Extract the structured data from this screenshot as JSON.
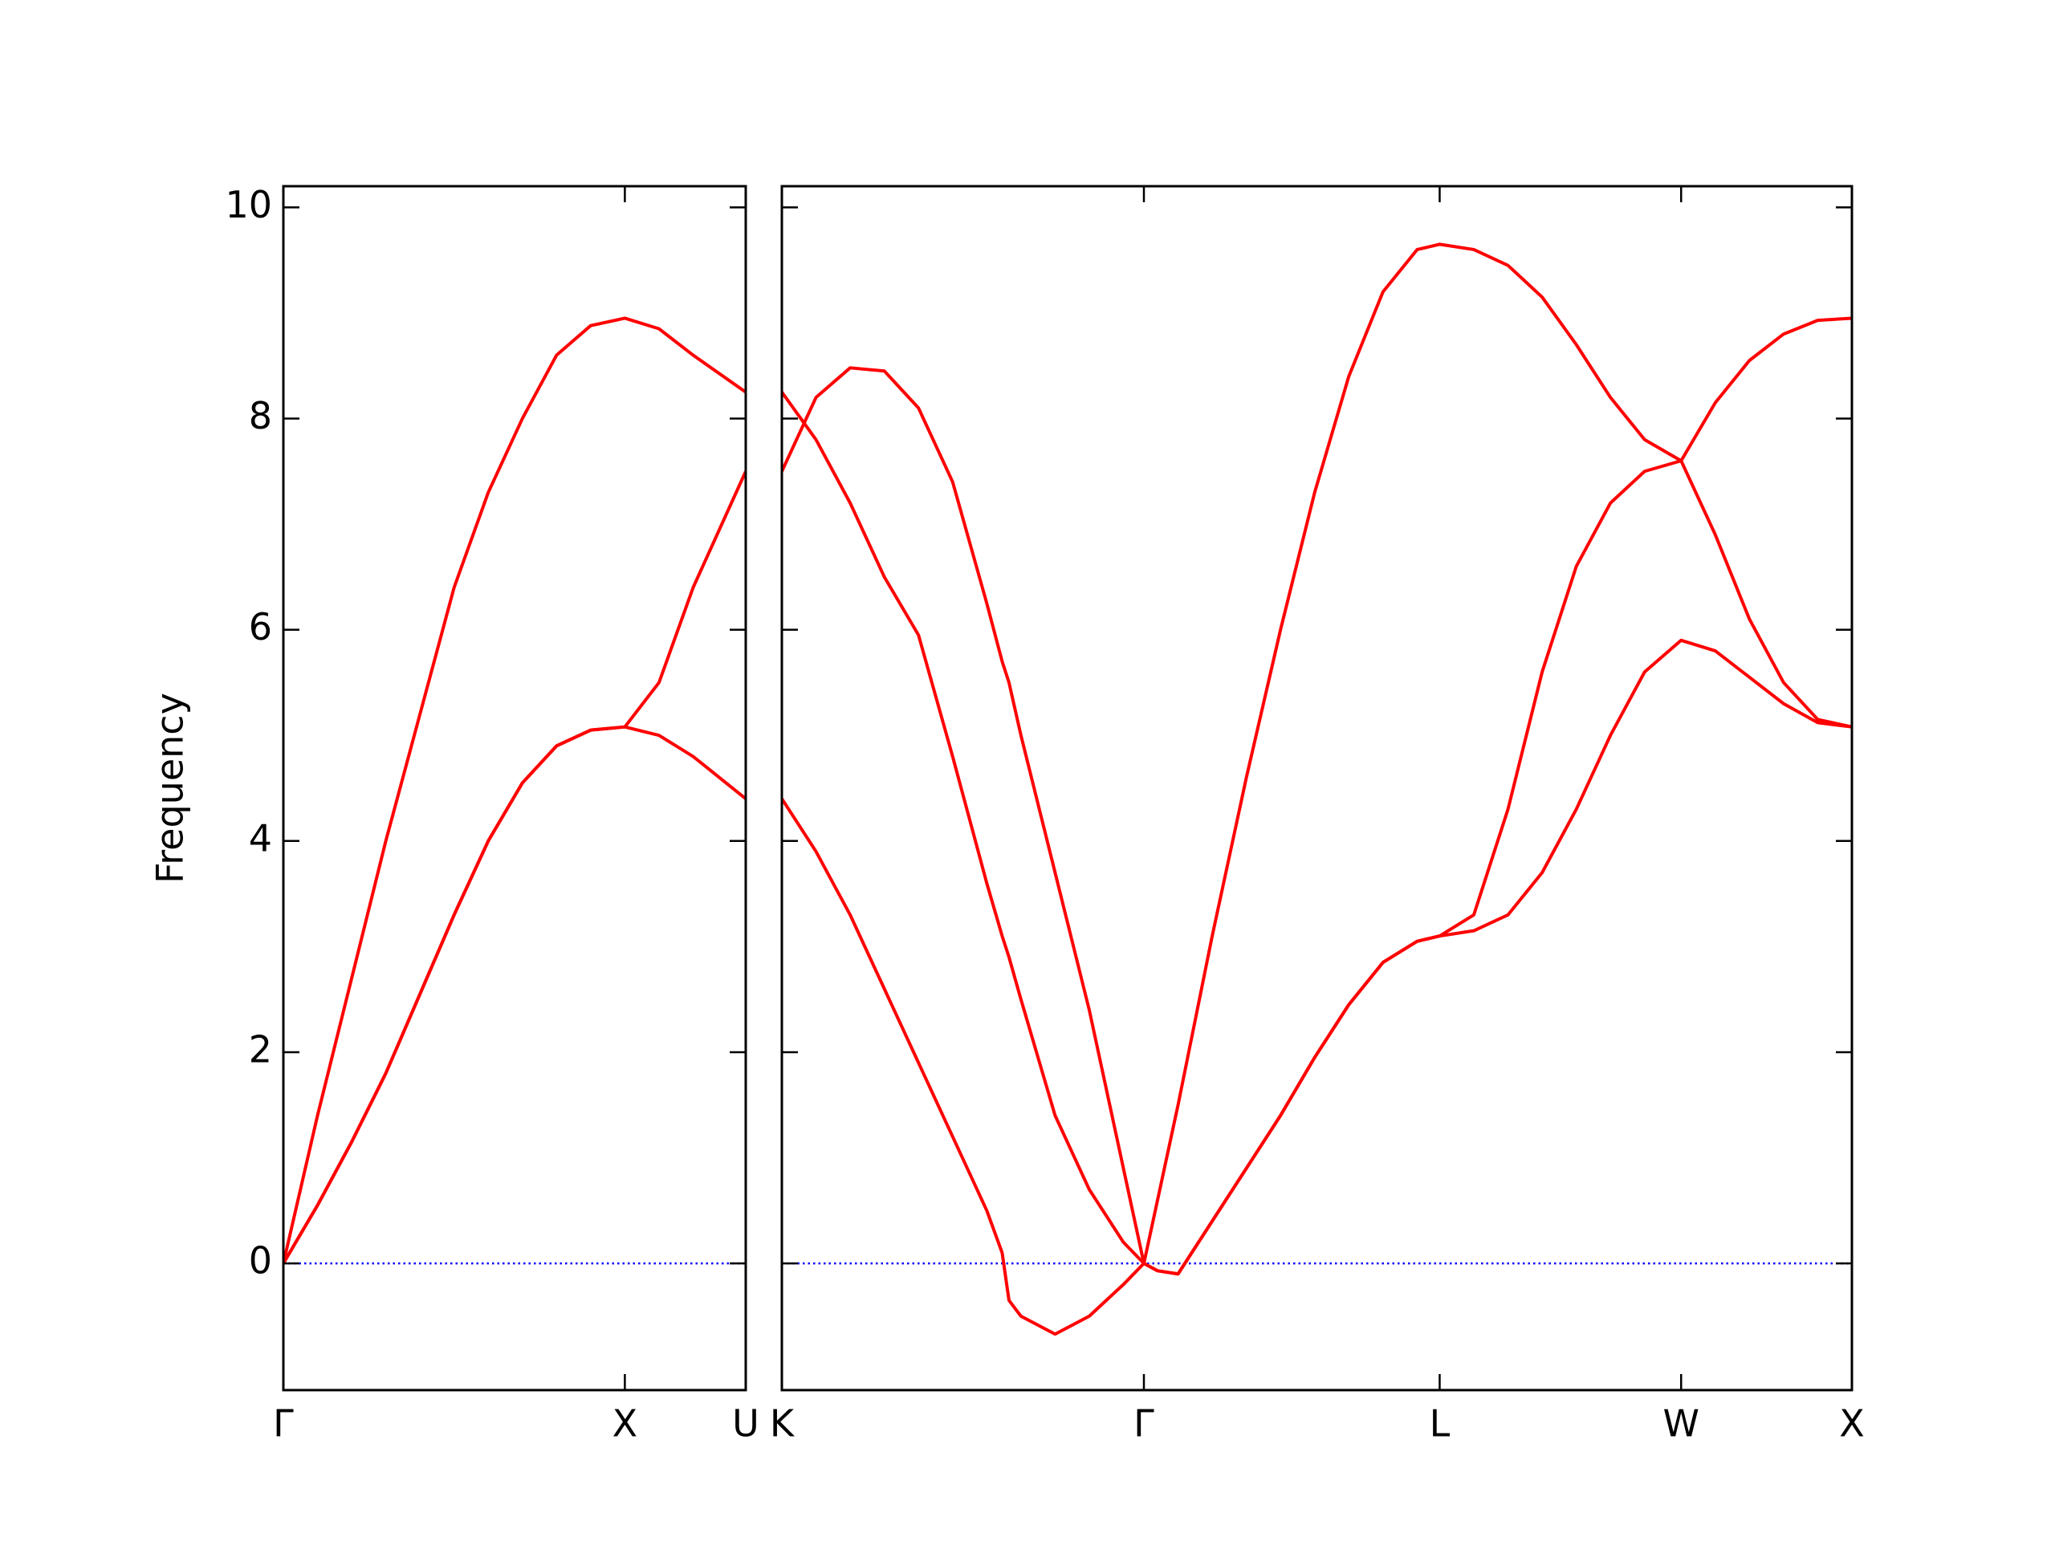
{
  "chart_data": [
    {
      "type": "line",
      "ylabel": "Frequency",
      "x": [
        0,
        0.1,
        0.2,
        0.3,
        0.4,
        0.5,
        0.6,
        0.7,
        0.8,
        0.9,
        1.0,
        1.1,
        1.2,
        1.354
      ],
      "series": [
        {
          "color": "#ff0000",
          "values": [
            0,
            1.4,
            2.7,
            4.0,
            5.2,
            6.4,
            7.3,
            8.0,
            8.6,
            8.88,
            8.95,
            8.85,
            8.6,
            8.25
          ]
        },
        {
          "color": "#ff0000",
          "values": [
            0,
            0.55,
            1.15,
            1.8,
            2.55,
            3.3,
            4.0,
            4.55,
            4.9,
            5.05,
            5.08,
            5.5,
            6.4,
            7.5
          ]
        },
        {
          "color": "#ff0000",
          "values": [
            0,
            0.55,
            1.15,
            1.8,
            2.55,
            3.3,
            4.0,
            4.55,
            4.9,
            5.05,
            5.08,
            5.0,
            4.8,
            4.4
          ]
        }
      ],
      "xlim": [
        0,
        1.354
      ],
      "xticks": [
        {
          "value": 0,
          "label": "Γ"
        },
        {
          "value": 1.0,
          "label": "X"
        },
        {
          "value": 1.354,
          "label": "U"
        }
      ],
      "ylim": [
        -1.2,
        10.2
      ],
      "yticks": [
        0,
        2,
        4,
        6,
        8,
        10
      ],
      "show_ytick_labels": true,
      "hline": {
        "value": 0,
        "color": "#0000ff",
        "style": "dotted"
      }
    },
    {
      "type": "line",
      "x": [
        1.354,
        1.454,
        1.554,
        1.654,
        1.754,
        1.854,
        1.954,
        1.999,
        2.019,
        2.054,
        2.154,
        2.254,
        2.354,
        2.414,
        2.454,
        2.514,
        2.614,
        2.714,
        2.814,
        2.914,
        3.014,
        3.114,
        3.214,
        3.28,
        3.38,
        3.48,
        3.58,
        3.68,
        3.78,
        3.88,
        3.987,
        4.087,
        4.187,
        4.287,
        4.387,
        4.487
      ],
      "series": [
        {
          "color": "#ff0000",
          "values": [
            7.5,
            8.2,
            8.48,
            8.45,
            8.1,
            7.4,
            6.25,
            5.7,
            5.5,
            5.0,
            3.7,
            2.4,
            0.9,
            0,
            0.6,
            1.5,
            3.1,
            4.6,
            6.0,
            7.3,
            8.4,
            9.2,
            9.6,
            9.65,
            9.6,
            9.45,
            9.15,
            8.7,
            8.2,
            7.8,
            7.6,
            8.15,
            8.55,
            8.8,
            8.93,
            8.95
          ]
        },
        {
          "color": "#ff0000",
          "values": [
            8.25,
            7.8,
            7.2,
            6.5,
            5.95,
            4.8,
            3.6,
            3.1,
            2.9,
            2.5,
            1.4,
            0.7,
            0.2,
            0,
            -0.07,
            -0.1,
            0.4,
            0.9,
            1.4,
            1.95,
            2.45,
            2.85,
            3.05,
            3.1,
            3.3,
            4.3,
            5.6,
            6.6,
            7.2,
            7.5,
            7.6,
            6.9,
            6.1,
            5.5,
            5.15,
            5.08
          ]
        },
        {
          "color": "#ff0000",
          "values": [
            4.4,
            3.9,
            3.3,
            2.6,
            1.9,
            1.2,
            0.5,
            0.1,
            -0.35,
            -0.5,
            -0.67,
            -0.5,
            -0.2,
            0,
            -0.07,
            -0.1,
            0.4,
            0.9,
            1.4,
            1.95,
            2.45,
            2.85,
            3.05,
            3.1,
            3.15,
            3.3,
            3.7,
            4.3,
            5.0,
            5.6,
            5.9,
            5.8,
            5.55,
            5.3,
            5.12,
            5.08
          ]
        }
      ],
      "xlim": [
        1.354,
        4.487
      ],
      "xticks": [
        {
          "value": 1.354,
          "label": "K"
        },
        {
          "value": 2.414,
          "label": "Γ"
        },
        {
          "value": 3.28,
          "label": "L"
        },
        {
          "value": 3.987,
          "label": "W"
        },
        {
          "value": 4.487,
          "label": "X"
        }
      ],
      "ylim": [
        -1.2,
        10.2
      ],
      "yticks": [
        0,
        2,
        4,
        6,
        8,
        10
      ],
      "show_ytick_labels": false,
      "hline": {
        "value": 0,
        "color": "#0000ff",
        "style": "dotted"
      }
    }
  ]
}
